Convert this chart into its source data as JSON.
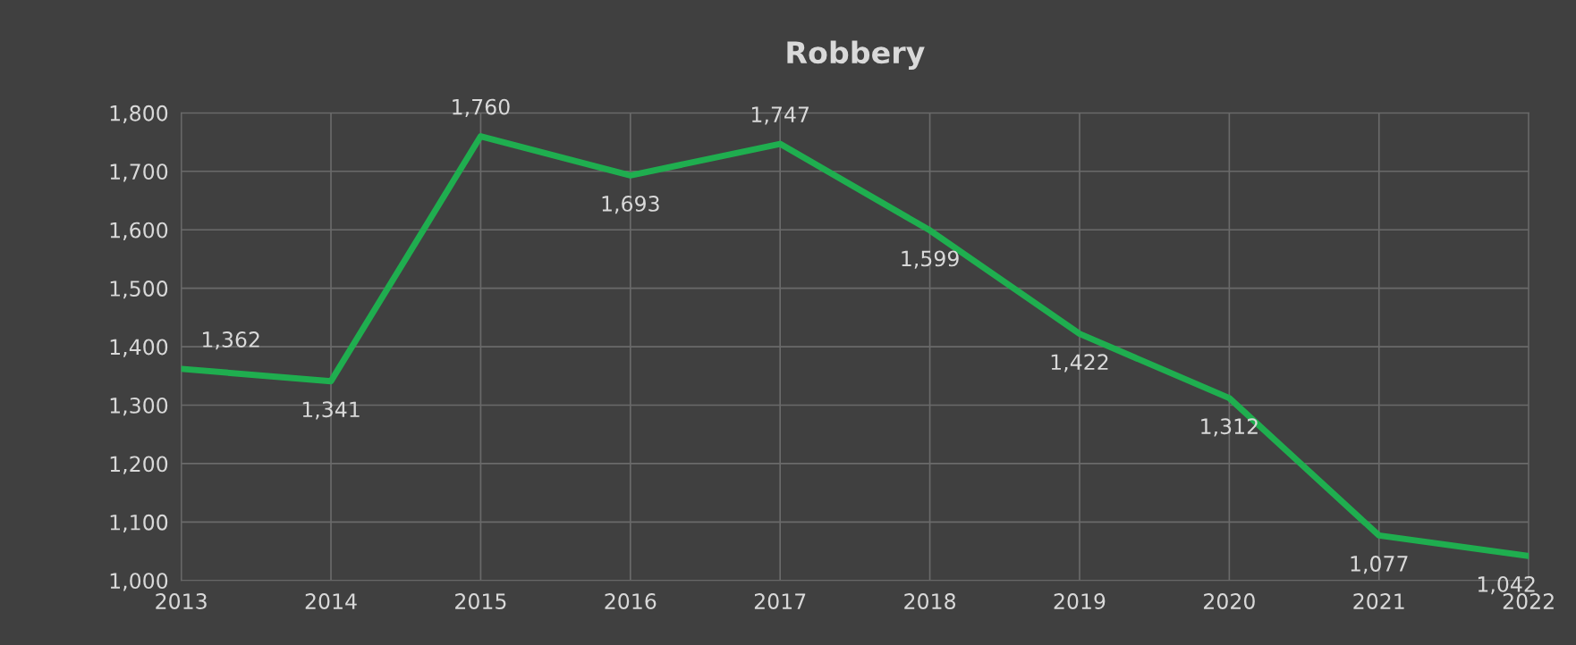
{
  "chart_data": {
    "type": "line",
    "title": "Robbery",
    "x": [
      2013,
      2014,
      2015,
      2016,
      2017,
      2018,
      2019,
      2020,
      2021,
      2022
    ],
    "series": [
      {
        "color": "#1fae4f",
        "values": [
          1362,
          1341,
          1760,
          1693,
          1747,
          1599,
          1422,
          1312,
          1077,
          1042
        ],
        "value_labels": [
          "1,362",
          "1,341",
          "1,760",
          "1,693",
          "1,747",
          "1,599",
          "1,422",
          "1,312",
          "1,077",
          "1,042"
        ]
      }
    ],
    "xlim": [
      2013,
      2022
    ],
    "xticks": [
      2013,
      2014,
      2015,
      2016,
      2017,
      2018,
      2019,
      2020,
      2021,
      2022
    ],
    "ylim": [
      1000,
      1800
    ],
    "yticks": [
      {
        "value": 1000,
        "label": "1,000"
      },
      {
        "value": 1100,
        "label": "1,100"
      },
      {
        "value": 1200,
        "label": "1,200"
      },
      {
        "value": 1300,
        "label": "1,300"
      },
      {
        "value": 1400,
        "label": "1,400"
      },
      {
        "value": 1500,
        "label": "1,500"
      },
      {
        "value": 1600,
        "label": "1,600"
      },
      {
        "value": 1700,
        "label": "1,700"
      },
      {
        "value": 1800,
        "label": "1,800"
      }
    ],
    "grid": true,
    "marker": "none",
    "line_style": "solid"
  }
}
